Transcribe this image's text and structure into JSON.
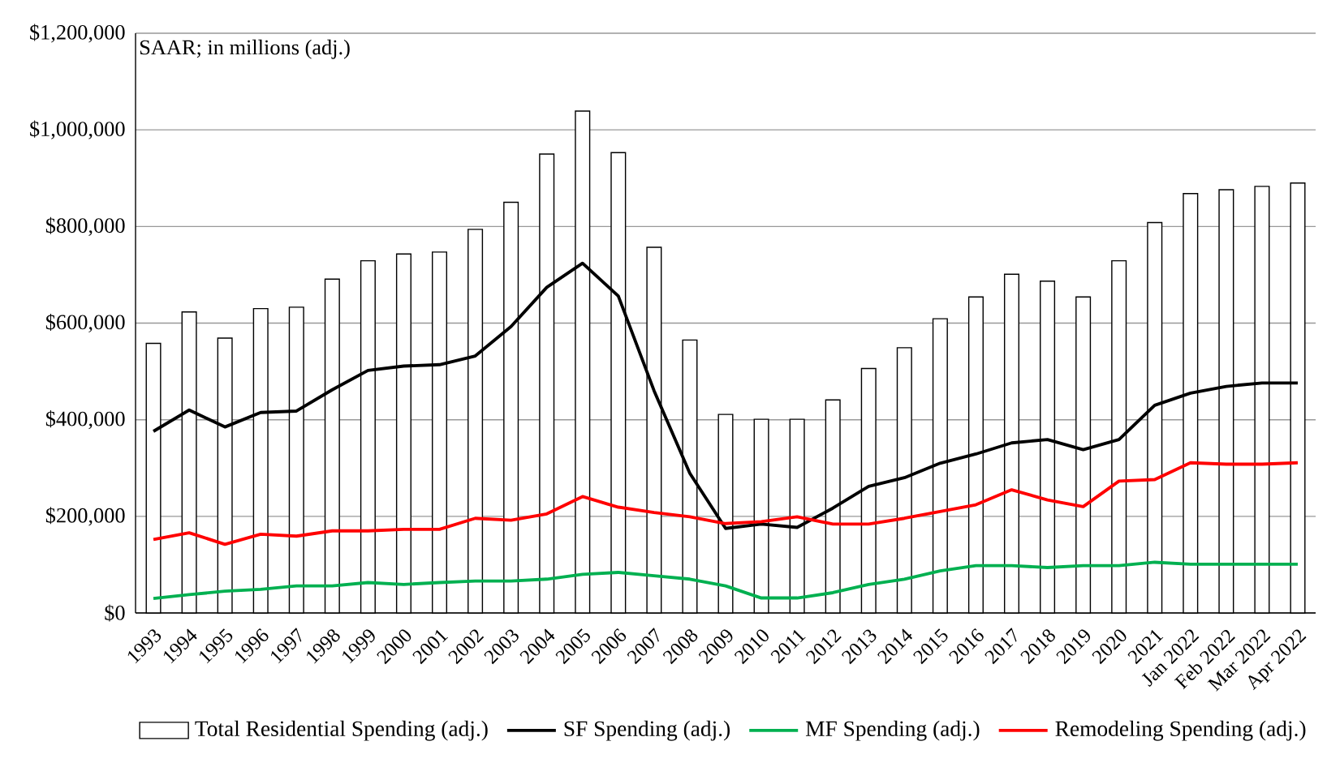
{
  "chart_data": {
    "type": "bar",
    "annotations": [
      "SAAR; in millions (adj.)"
    ],
    "categories": [
      "1993",
      "1994",
      "1995",
      "1996",
      "1997",
      "1998",
      "1999",
      "2000",
      "2001",
      "2002",
      "2003",
      "2004",
      "2005",
      "2006",
      "2007",
      "2008",
      "2009",
      "2010",
      "2011",
      "2012",
      "2013",
      "2014",
      "2015",
      "2016",
      "2017",
      "2018",
      "2019",
      "2020",
      "2021",
      "Jan 2022",
      "Feb 2022",
      "Mar 2022",
      "Apr 2022"
    ],
    "series": [
      {
        "name": "Total Residential Spending (adj.)",
        "color": "#ffffff",
        "values": [
          558000,
          623000,
          569000,
          630000,
          633000,
          691000,
          729000,
          743000,
          747000,
          794000,
          850000,
          950000,
          1039000,
          953000,
          757000,
          565000,
          411000,
          401000,
          401000,
          441000,
          506000,
          549000,
          609000,
          654000,
          701000,
          687000,
          654000,
          729000,
          808000,
          868000,
          876000,
          883000,
          890000
        ]
      },
      {
        "name": "SF Spending (adj.)",
        "type": "line",
        "color": "#000000",
        "values": [
          376000,
          420000,
          385000,
          415000,
          418000,
          462000,
          502000,
          511000,
          514000,
          532000,
          593000,
          674000,
          724000,
          656000,
          460000,
          289000,
          175000,
          184000,
          177000,
          217000,
          262000,
          280000,
          310000,
          329000,
          352000,
          359000,
          338000,
          359000,
          430000,
          455000,
          469000,
          476000,
          476000
        ]
      },
      {
        "name": "MF Spending (adj.)",
        "type": "line",
        "color": "#00b050",
        "values": [
          30000,
          38000,
          45000,
          49000,
          56000,
          56000,
          63000,
          59000,
          63000,
          66000,
          66000,
          70000,
          80000,
          84000,
          77000,
          70000,
          56000,
          31000,
          31000,
          42000,
          59000,
          70000,
          87000,
          98000,
          98000,
          94000,
          98000,
          98000,
          105000,
          101000,
          101000,
          101000,
          101000
        ]
      },
      {
        "name": "Remodeling Spending (adj.)",
        "type": "line",
        "color": "#ff0000",
        "values": [
          152000,
          166000,
          142000,
          163000,
          159000,
          170000,
          170000,
          173000,
          173000,
          196000,
          192000,
          205000,
          241000,
          219000,
          208000,
          199000,
          185000,
          189000,
          199000,
          184000,
          184000,
          196000,
          210000,
          224000,
          255000,
          234000,
          220000,
          273000,
          276000,
          311000,
          308000,
          308000,
          311000
        ]
      }
    ],
    "ylim": [
      0,
      1200000
    ],
    "yticks": [
      {
        "value": 0,
        "label": "$0"
      },
      {
        "value": 200000,
        "label": "$200,000"
      },
      {
        "value": 400000,
        "label": "$400,000"
      },
      {
        "value": 600000,
        "label": "$600,000"
      },
      {
        "value": 800000,
        "label": "$800,000"
      },
      {
        "value": 1000000,
        "label": "$1,000,000"
      },
      {
        "value": 1200000,
        "label": "$1,200,000"
      }
    ],
    "grid": "y",
    "legend": "bottom"
  }
}
